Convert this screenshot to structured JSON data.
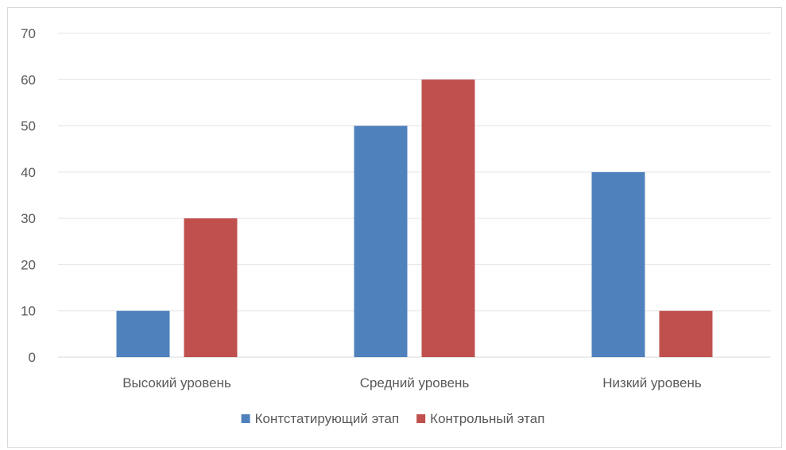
{
  "chart_data": {
    "type": "bar",
    "categories": [
      "Высокий уровень",
      "Средний уровень",
      "Низкий уровень"
    ],
    "series": [
      {
        "name": "Контстатирующий этап",
        "values": [
          10,
          50,
          40
        ],
        "color": "#4f81bd"
      },
      {
        "name": "Контрольный этап",
        "values": [
          30,
          60,
          10
        ],
        "color": "#c0504d"
      }
    ],
    "ylim": [
      0,
      70
    ],
    "yticks": [
      0,
      10,
      20,
      30,
      40,
      50,
      60,
      70
    ],
    "grid": true,
    "legend": "bottom",
    "title": "",
    "xlabel": "",
    "ylabel": ""
  }
}
